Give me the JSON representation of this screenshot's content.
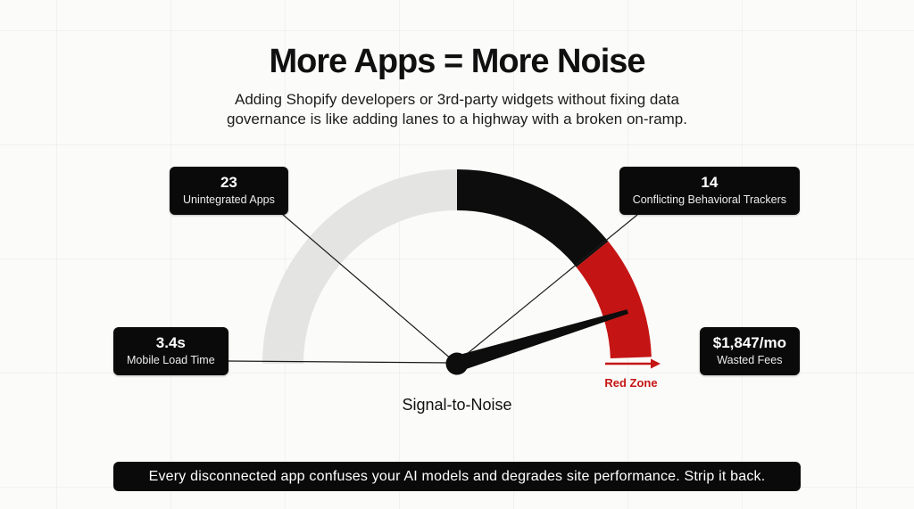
{
  "header": {
    "title": "More Apps = More Noise",
    "subtitle": "Adding Shopify developers or 3rd-party widgets without fixing data governance is like adding lanes to a highway with a broken on-ramp."
  },
  "theme": {
    "background": "#fbfbf9",
    "ink": "#0d0d0d",
    "accent_red": "#c51414",
    "track_gray": "#e4e4e3",
    "connector": "#1a1a1a",
    "callout_bg": "#0a0a0a",
    "callout_text": "#ffffff"
  },
  "chart_data": {
    "type": "gauge",
    "title": "Signal-to-Noise",
    "axis_label": "Signal-to-Noise",
    "min_angle_deg": 180,
    "max_angle_deg": 2,
    "segments": [
      {
        "label": "signal-gray",
        "color": "#e4e4e3",
        "start_deg": 180,
        "end_deg": 90
      },
      {
        "label": "noise-black",
        "color": "#0d0d0d",
        "start_deg": 90,
        "end_deg": 39
      },
      {
        "label": "red-zone",
        "color": "#c51414",
        "start_deg": 39,
        "end_deg": 2
      }
    ],
    "needle_angle_deg": 17,
    "zone_label": "Red Zone",
    "callouts": [
      {
        "id": "unintegrated-apps",
        "value": "23",
        "label": "Unintegrated Apps",
        "position": "top-left"
      },
      {
        "id": "conflicting-trackers",
        "value": "14",
        "label": "Conflicting Behavioral Trackers",
        "position": "top-right"
      },
      {
        "id": "mobile-load-time",
        "value": "3.4s",
        "label": "Mobile Load Time",
        "position": "left"
      },
      {
        "id": "wasted-fees",
        "value": "$1,847/mo",
        "label": "Wasted Fees",
        "position": "right"
      }
    ]
  },
  "footer": {
    "banner": "Every disconnected app confuses your AI models and degrades site performance. Strip it back."
  }
}
